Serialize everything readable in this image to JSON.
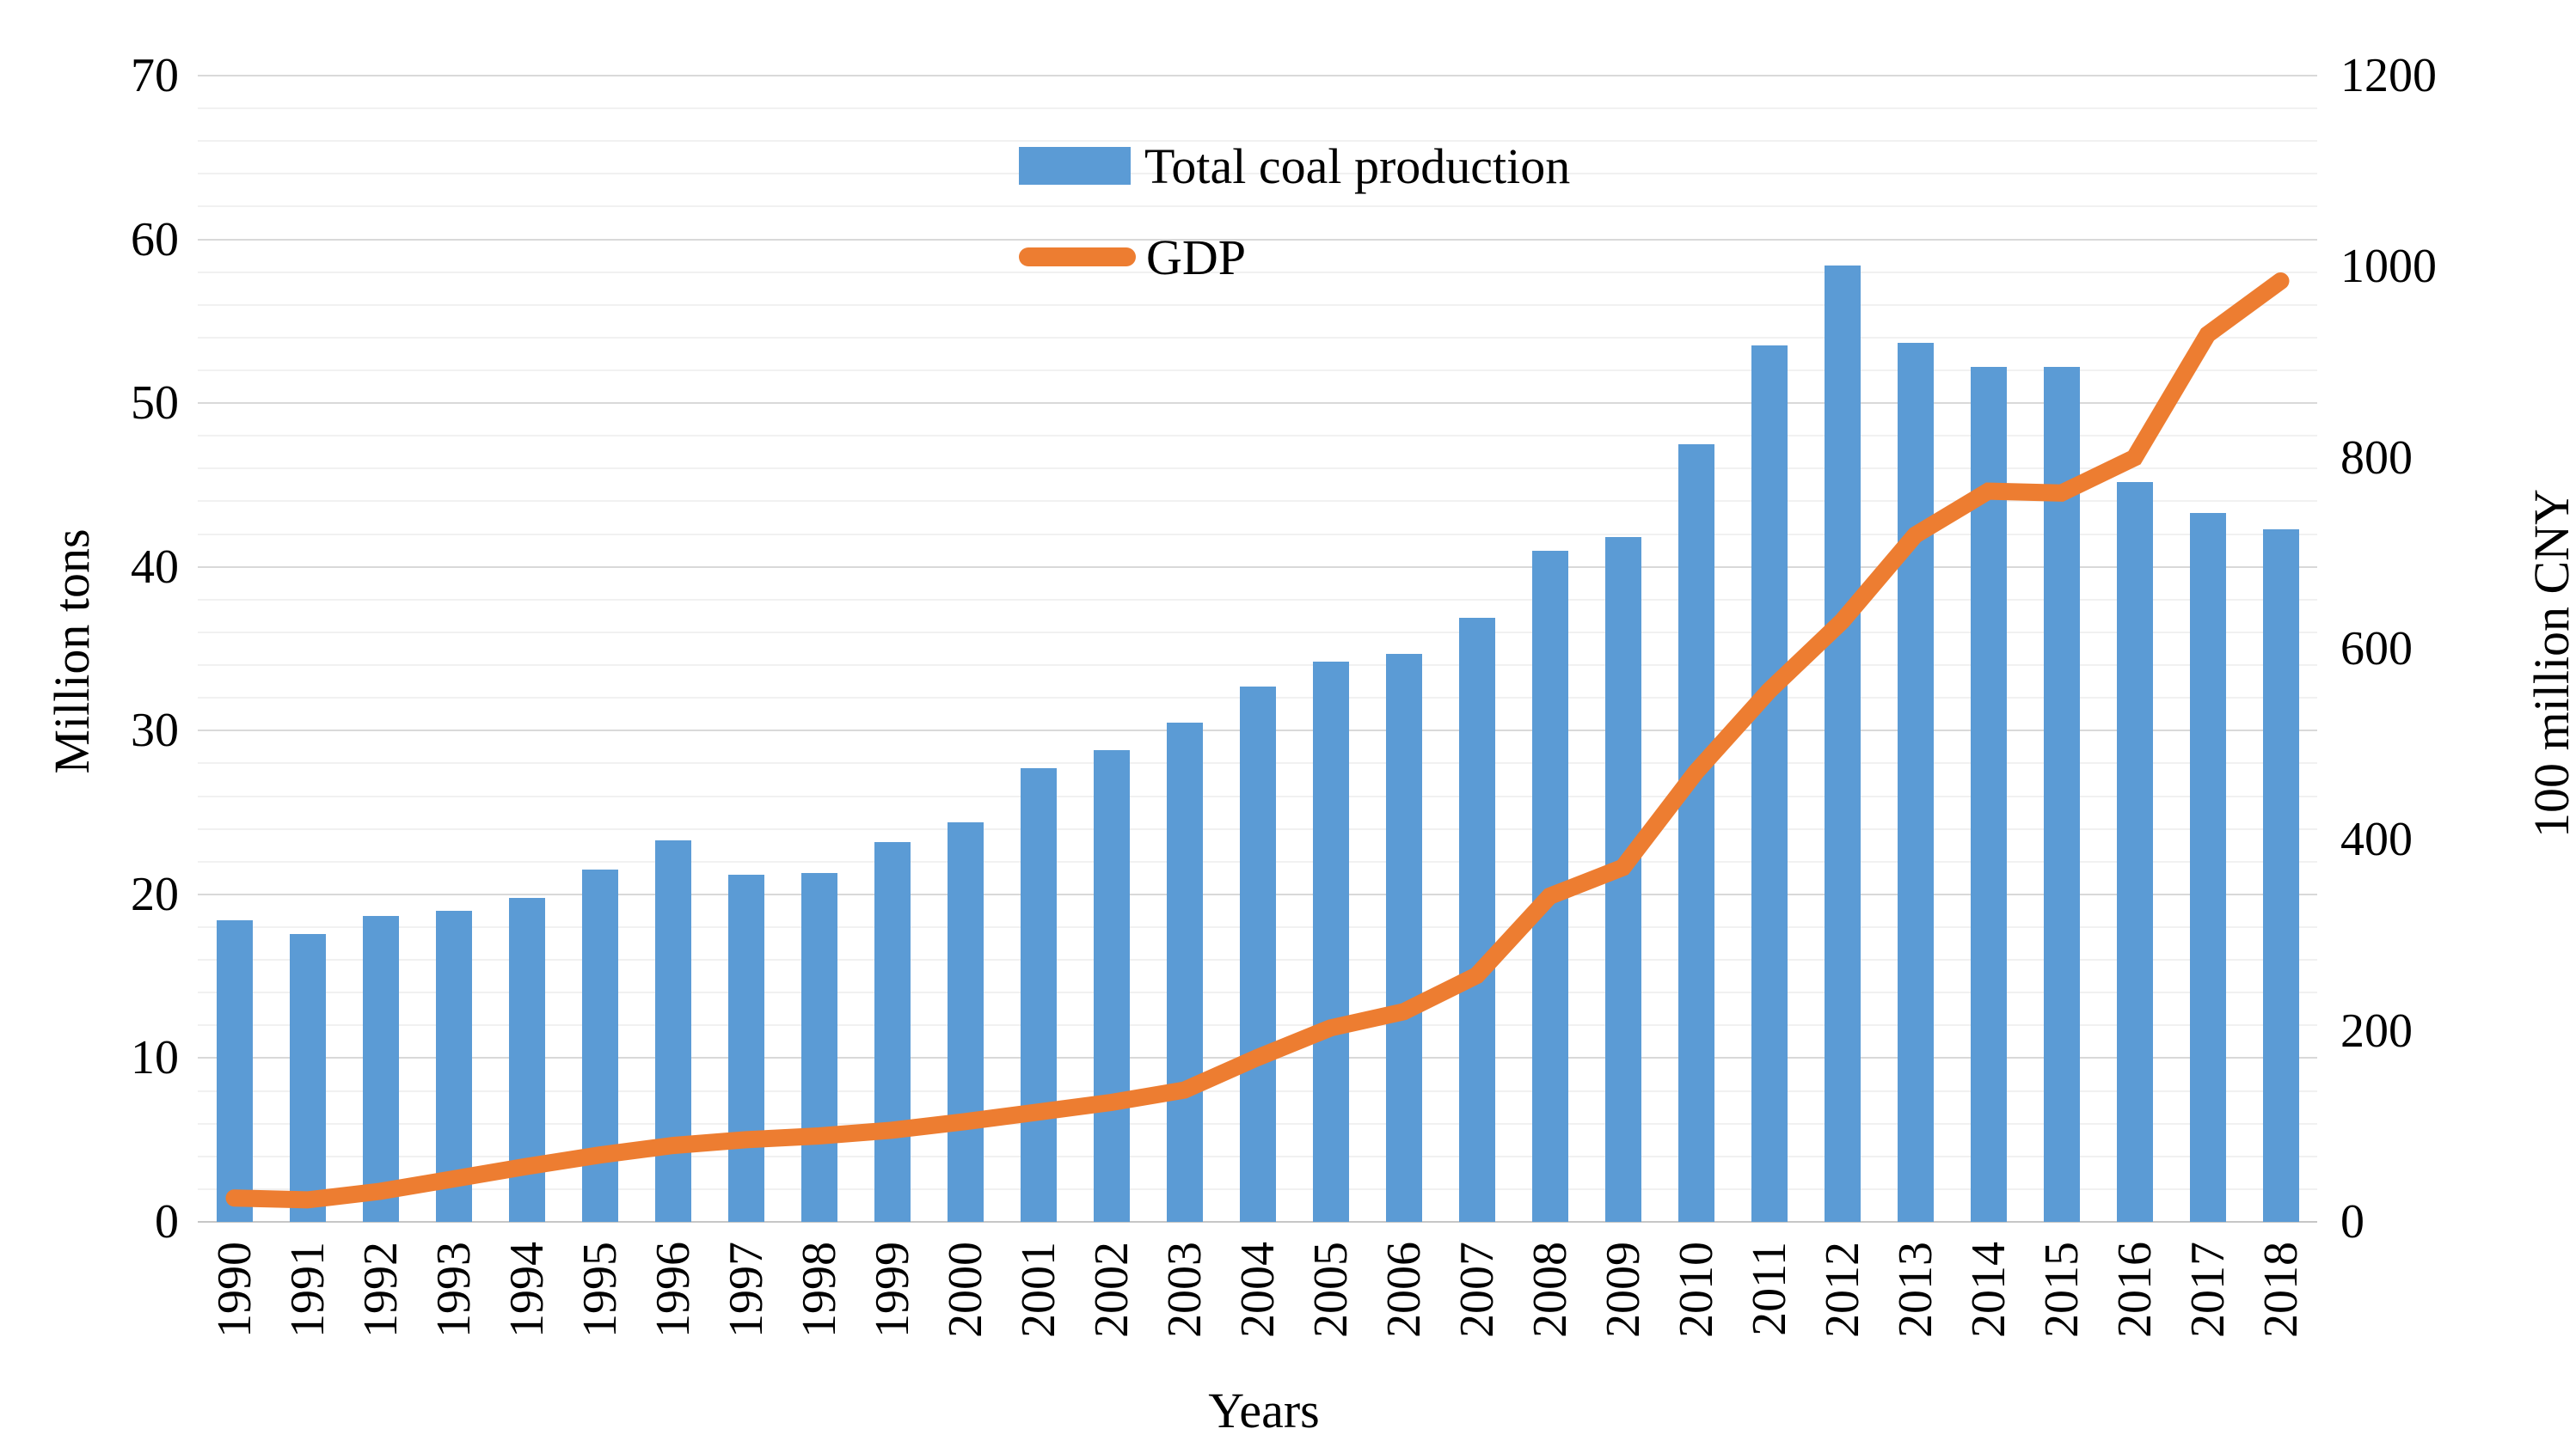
{
  "chart_data": {
    "type": "bar+line",
    "title": "",
    "xlabel": "Years",
    "ylabel_left": "Million tons",
    "ylabel_right": "100 million CNY",
    "categories": [
      "1990",
      "1991",
      "1992",
      "1993",
      "1994",
      "1995",
      "1996",
      "1997",
      "1998",
      "1999",
      "2000",
      "2001",
      "2002",
      "2003",
      "2004",
      "2005",
      "2006",
      "2007",
      "2008",
      "2009",
      "2010",
      "2011",
      "2012",
      "2013",
      "2014",
      "2015",
      "2016",
      "2017",
      "2018"
    ],
    "series": [
      {
        "name": "Total coal production",
        "type": "bar",
        "axis": "left",
        "unit": "Million tons",
        "color": "#5B9BD5",
        "values": [
          18.4,
          17.6,
          18.7,
          19.0,
          19.8,
          21.5,
          23.3,
          21.2,
          21.3,
          23.2,
          24.4,
          27.7,
          28.8,
          30.5,
          32.7,
          34.2,
          34.7,
          36.9,
          41.0,
          41.8,
          47.5,
          53.5,
          58.4,
          53.7,
          52.2,
          52.2,
          45.2,
          43.3,
          42.3
        ]
      },
      {
        "name": "GDP",
        "type": "line",
        "axis": "right",
        "unit": "100 million CNY",
        "color": "#ED7D31",
        "values": [
          25,
          23,
          32,
          45,
          58,
          70,
          80,
          86,
          90,
          96,
          105,
          115,
          125,
          138,
          172,
          203,
          220,
          258,
          341,
          371,
          471,
          556,
          629,
          719,
          765,
          763,
          800,
          929,
          985
        ]
      }
    ],
    "axes": {
      "left": {
        "min": 0,
        "max": 70,
        "major_step": 10,
        "minor_step": 2,
        "ticks": [
          0,
          10,
          20,
          30,
          40,
          50,
          60,
          70
        ]
      },
      "right": {
        "min": 0,
        "max": 1200,
        "major_step": 200,
        "ticks": [
          0,
          200,
          400,
          600,
          800,
          1000,
          1200
        ]
      }
    },
    "grid": {
      "minor": true,
      "major": true
    },
    "legend_position": "top-center"
  },
  "colors": {
    "bar": "#5B9BD5",
    "line": "#ED7D31",
    "gridline_major": "#d9d9d9",
    "gridline_minor": "#f1f1f1",
    "text": "#000000"
  }
}
